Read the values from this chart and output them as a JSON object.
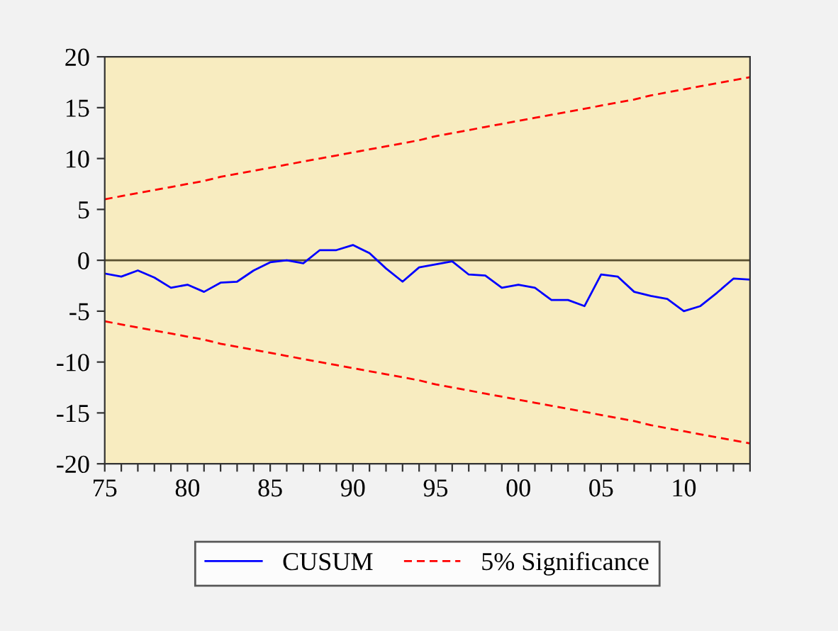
{
  "chart_data": {
    "type": "line",
    "x": [
      1975,
      1976,
      1977,
      1978,
      1979,
      1980,
      1981,
      1982,
      1983,
      1984,
      1985,
      1986,
      1987,
      1988,
      1989,
      1990,
      1991,
      1992,
      1993,
      1994,
      1995,
      1996,
      1997,
      1998,
      1999,
      2000,
      2001,
      2002,
      2003,
      2004,
      2005,
      2006,
      2007,
      2008,
      2009,
      2010,
      2011,
      2012,
      2013,
      2014
    ],
    "series": [
      {
        "name": "CUSUM",
        "color": "#0000ff",
        "line_style": "solid",
        "values": [
          -1.3,
          -1.6,
          -1.0,
          -1.7,
          -2.7,
          -2.4,
          -3.1,
          -2.2,
          -2.1,
          -1.0,
          -0.2,
          0.0,
          -0.3,
          1.0,
          1.0,
          1.5,
          0.7,
          -0.8,
          -2.1,
          -0.7,
          -0.4,
          -0.1,
          -1.4,
          -1.5,
          -2.7,
          -2.4,
          -2.7,
          -3.9,
          -3.9,
          -4.5,
          -1.4,
          -1.6,
          -3.1,
          -3.5,
          -3.8,
          -5.0,
          -4.5,
          -3.2,
          -1.8,
          -1.9
        ]
      },
      {
        "name": "5% Significance",
        "color": "#ff0000",
        "line_style": "dashed",
        "values": [
          6.0,
          6.3,
          6.6,
          6.9,
          7.2,
          7.5,
          7.8,
          8.2,
          8.5,
          8.8,
          9.1,
          9.4,
          9.7,
          10.0,
          10.3,
          10.6,
          10.9,
          11.2,
          11.5,
          11.8,
          12.2,
          12.5,
          12.8,
          13.1,
          13.4,
          13.7,
          14.0,
          14.3,
          14.6,
          14.9,
          15.2,
          15.5,
          15.8,
          16.2,
          16.5,
          16.8,
          17.1,
          17.4,
          17.7,
          18.0
        ]
      },
      {
        "color": "#ff0000",
        "line_style": "dashed",
        "values": [
          -6.0,
          -6.3,
          -6.6,
          -6.9,
          -7.2,
          -7.5,
          -7.8,
          -8.2,
          -8.5,
          -8.8,
          -9.1,
          -9.4,
          -9.7,
          -10.0,
          -10.3,
          -10.6,
          -10.9,
          -11.2,
          -11.5,
          -11.8,
          -12.2,
          -12.5,
          -12.8,
          -13.1,
          -13.4,
          -13.7,
          -14.0,
          -14.3,
          -14.6,
          -14.9,
          -15.2,
          -15.5,
          -15.8,
          -16.2,
          -16.5,
          -16.8,
          -17.1,
          -17.4,
          -17.7,
          -18.0
        ]
      }
    ],
    "xlim": [
      1975,
      2014
    ],
    "xticks": [
      {
        "value": 1975,
        "label": "75"
      },
      {
        "value": 1976,
        "label": null
      },
      {
        "value": 1977,
        "label": null
      },
      {
        "value": 1978,
        "label": null
      },
      {
        "value": 1979,
        "label": null
      },
      {
        "value": 1980,
        "label": "80"
      },
      {
        "value": 1981,
        "label": null
      },
      {
        "value": 1982,
        "label": null
      },
      {
        "value": 1983,
        "label": null
      },
      {
        "value": 1984,
        "label": null
      },
      {
        "value": 1985,
        "label": "85"
      },
      {
        "value": 1986,
        "label": null
      },
      {
        "value": 1987,
        "label": null
      },
      {
        "value": 1988,
        "label": null
      },
      {
        "value": 1989,
        "label": null
      },
      {
        "value": 1990,
        "label": "90"
      },
      {
        "value": 1991,
        "label": null
      },
      {
        "value": 1992,
        "label": null
      },
      {
        "value": 1993,
        "label": null
      },
      {
        "value": 1994,
        "label": null
      },
      {
        "value": 1995,
        "label": "95"
      },
      {
        "value": 1996,
        "label": null
      },
      {
        "value": 1997,
        "label": null
      },
      {
        "value": 1998,
        "label": null
      },
      {
        "value": 1999,
        "label": null
      },
      {
        "value": 2000,
        "label": "00"
      },
      {
        "value": 2001,
        "label": null
      },
      {
        "value": 2002,
        "label": null
      },
      {
        "value": 2003,
        "label": null
      },
      {
        "value": 2004,
        "label": null
      },
      {
        "value": 2005,
        "label": "05"
      },
      {
        "value": 2006,
        "label": null
      },
      {
        "value": 2007,
        "label": null
      },
      {
        "value": 2008,
        "label": null
      },
      {
        "value": 2009,
        "label": null
      },
      {
        "value": 2010,
        "label": "10"
      },
      {
        "value": 2011,
        "label": null
      },
      {
        "value": 2012,
        "label": null
      },
      {
        "value": 2013,
        "label": null
      },
      {
        "value": 2014,
        "label": null
      }
    ],
    "ylim": [
      -20,
      20
    ],
    "yticks": [
      -20,
      -15,
      -10,
      -5,
      0,
      5,
      10,
      15,
      20
    ],
    "ref_lines": [
      {
        "axis": "y",
        "value": 0,
        "color": "#5a5030"
      }
    ],
    "grid": false,
    "legend": "bottom",
    "marker": "none"
  }
}
